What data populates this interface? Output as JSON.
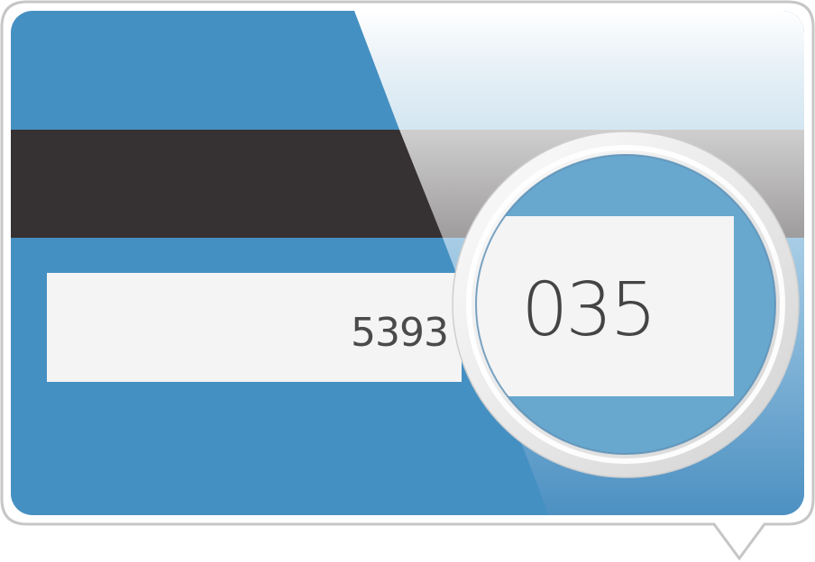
{
  "card": {
    "signature_number": "5393",
    "security_code": "035"
  },
  "colors": {
    "card_blue": "#4590c2",
    "magnetic_stripe": "#363132",
    "signature_panel": "#f4f4f4",
    "magnifier_tint": "#68a7ce",
    "bubble_border": "#c6c6c6"
  },
  "icons": {
    "magnifier": "magnifying-glass-icon",
    "bubble": "speech-bubble-icon"
  }
}
